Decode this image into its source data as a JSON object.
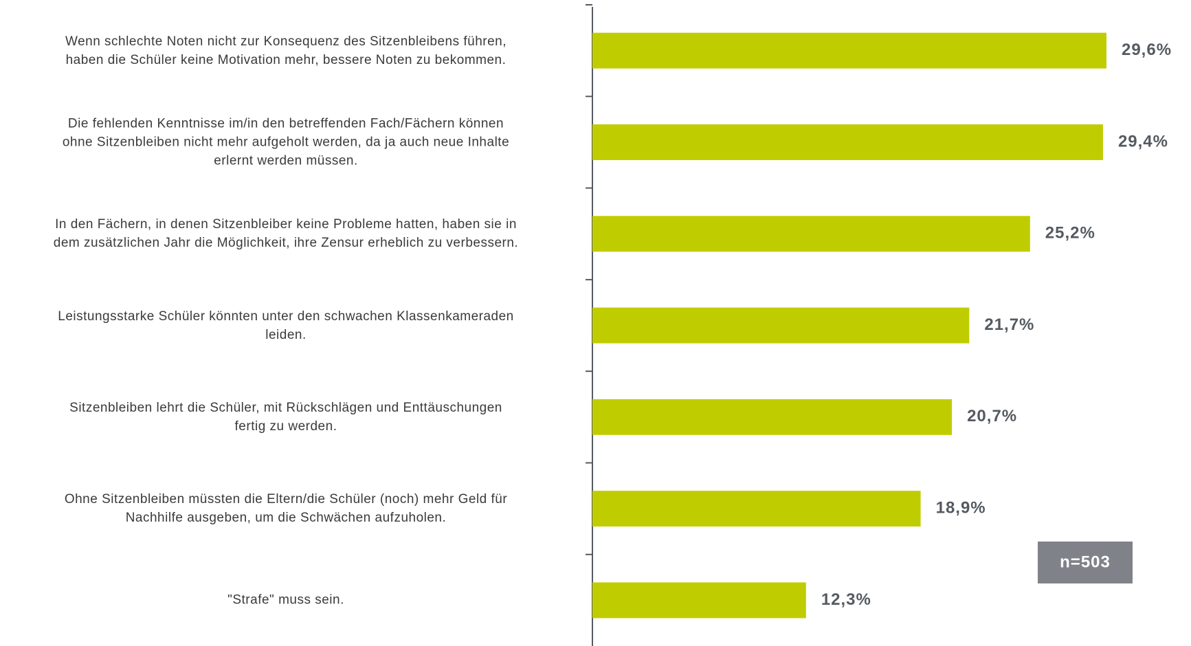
{
  "chart_data": {
    "type": "bar",
    "orientation": "horizontal",
    "categories": [
      "Wenn schlechte Noten nicht zur Konsequenz des Sitzenbleibens führen,\nhaben die Schüler keine Motivation mehr, bessere Noten zu bekommen.",
      "Die fehlenden Kenntnisse im/in den betreffenden Fach/Fächern können\nohne Sitzenbleiben nicht mehr aufgeholt werden, da ja auch neue Inhalte\nerlernt werden müssen.",
      "In den Fächern, in denen Sitzenbleiber keine Probleme hatten, haben sie in\ndem zusätzlichen Jahr die Möglichkeit, ihre Zensur erheblich zu verbessern.",
      "Leistungsstarke Schüler könnten unter den schwachen Klassenkameraden\nleiden.",
      "Sitzenbleiben lehrt die Schüler, mit Rückschlägen und Enttäuschungen\nfertig zu werden.",
      "Ohne Sitzenbleiben müssten die Eltern/die Schüler (noch) mehr Geld für\nNachhilfe ausgeben, um die Schwächen aufzuholen.",
      "\"Strafe\" muss sein."
    ],
    "values": [
      29.6,
      29.4,
      25.2,
      21.7,
      20.7,
      18.9,
      12.3
    ],
    "value_labels": [
      "29,6%",
      "29,4%",
      "25,2%",
      "21,7%",
      "20,7%",
      "18,9%",
      "12,3%"
    ],
    "color": "#bfcd00",
    "annotation": "n=503"
  }
}
